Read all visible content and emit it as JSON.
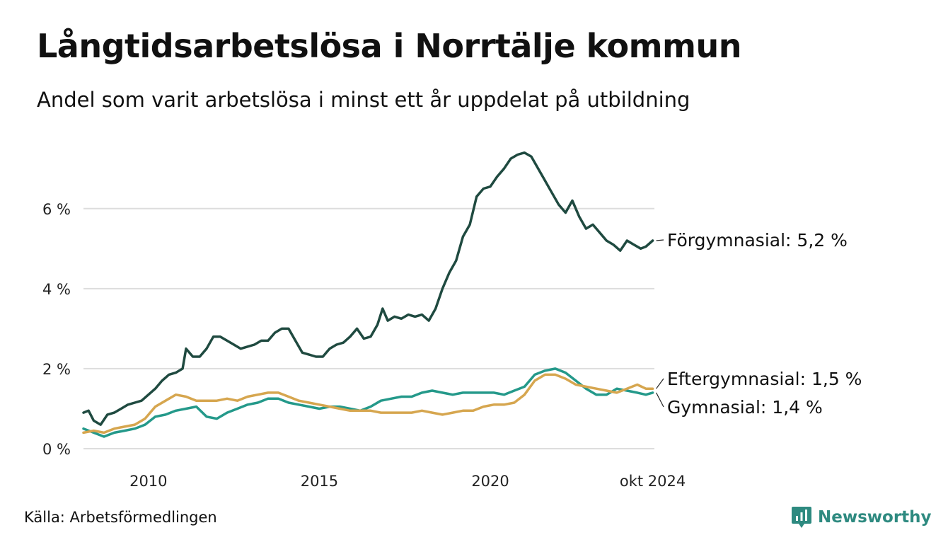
{
  "title": "Långtidsarbetslösa i Norrtälje kommun",
  "subtitle": "Andel som varit arbetslösa i minst ett år uppdelat på utbildning",
  "source": "Källa: Arbetsförmedlingen",
  "brand": "Newsworthy",
  "colors": {
    "forgymnasial": "#1f4a40",
    "gymnasial": "#24998a",
    "eftergymnasial": "#d6a64f",
    "grid": "#dddddd",
    "brand": "#2e8a80"
  },
  "chart_data": {
    "type": "line",
    "xlim": [
      2008.1,
      2024.8
    ],
    "ylim": [
      0,
      7.5
    ],
    "y_ticks": [
      {
        "value": 0,
        "label": "0 %"
      },
      {
        "value": 2,
        "label": "2 %"
      },
      {
        "value": 4,
        "label": "4 %"
      },
      {
        "value": 6,
        "label": "6 %"
      }
    ],
    "x_ticks": [
      {
        "value": 2010,
        "label": "2010"
      },
      {
        "value": 2015,
        "label": "2015"
      },
      {
        "value": 2020,
        "label": "2020"
      },
      {
        "value": 2024.75,
        "label": "okt 2024"
      }
    ],
    "grid": true,
    "series": [
      {
        "key": "forgymnasial",
        "name": "Förgymnasial",
        "end_label": "Förgymnasial: 5,2 %",
        "x": [
          2008.1,
          2008.25,
          2008.4,
          2008.6,
          2008.8,
          2009.0,
          2009.2,
          2009.4,
          2009.6,
          2009.8,
          2010.0,
          2010.2,
          2010.4,
          2010.6,
          2010.8,
          2011.0,
          2011.1,
          2011.3,
          2011.5,
          2011.7,
          2011.9,
          2012.1,
          2012.3,
          2012.5,
          2012.7,
          2012.9,
          2013.1,
          2013.3,
          2013.5,
          2013.7,
          2013.9,
          2014.1,
          2014.3,
          2014.5,
          2014.7,
          2014.9,
          2015.1,
          2015.3,
          2015.5,
          2015.7,
          2015.9,
          2016.1,
          2016.3,
          2016.5,
          2016.7,
          2016.85,
          2017.0,
          2017.2,
          2017.4,
          2017.6,
          2017.8,
          2018.0,
          2018.2,
          2018.4,
          2018.6,
          2018.8,
          2019.0,
          2019.2,
          2019.4,
          2019.6,
          2019.8,
          2020.0,
          2020.2,
          2020.4,
          2020.6,
          2020.8,
          2021.0,
          2021.2,
          2021.4,
          2021.6,
          2021.8,
          2022.0,
          2022.2,
          2022.4,
          2022.6,
          2022.8,
          2023.0,
          2023.2,
          2023.4,
          2023.6,
          2023.8,
          2024.0,
          2024.2,
          2024.4,
          2024.55,
          2024.75
        ],
        "y": [
          0.9,
          0.95,
          0.7,
          0.6,
          0.85,
          0.9,
          1.0,
          1.1,
          1.15,
          1.2,
          1.35,
          1.5,
          1.7,
          1.85,
          1.9,
          2.0,
          2.5,
          2.3,
          2.3,
          2.5,
          2.8,
          2.8,
          2.7,
          2.6,
          2.5,
          2.55,
          2.6,
          2.7,
          2.7,
          2.9,
          3.0,
          3.0,
          2.7,
          2.4,
          2.35,
          2.3,
          2.3,
          2.5,
          2.6,
          2.65,
          2.8,
          3.0,
          2.75,
          2.8,
          3.1,
          3.5,
          3.2,
          3.3,
          3.25,
          3.35,
          3.3,
          3.35,
          3.2,
          3.5,
          4.0,
          4.4,
          4.7,
          5.3,
          5.6,
          6.3,
          6.5,
          6.55,
          6.8,
          7.0,
          7.25,
          7.35,
          7.4,
          7.3,
          7.0,
          6.7,
          6.4,
          6.1,
          5.9,
          6.2,
          5.8,
          5.5,
          5.6,
          5.4,
          5.2,
          5.1,
          4.95,
          5.2,
          5.1,
          5.0,
          5.05,
          5.2
        ]
      },
      {
        "key": "gymnasial",
        "name": "Gymnasial",
        "end_label": "Gymnasial: 1,4 %",
        "x": [
          2008.1,
          2008.4,
          2008.7,
          2009.0,
          2009.3,
          2009.6,
          2009.9,
          2010.2,
          2010.5,
          2010.8,
          2011.1,
          2011.4,
          2011.7,
          2012.0,
          2012.3,
          2012.6,
          2012.9,
          2013.2,
          2013.5,
          2013.8,
          2014.1,
          2014.4,
          2014.7,
          2015.0,
          2015.3,
          2015.6,
          2015.9,
          2016.2,
          2016.5,
          2016.8,
          2017.1,
          2017.4,
          2017.7,
          2018.0,
          2018.3,
          2018.6,
          2018.9,
          2019.2,
          2019.5,
          2019.8,
          2020.1,
          2020.4,
          2020.7,
          2021.0,
          2021.3,
          2021.6,
          2021.9,
          2022.2,
          2022.5,
          2022.8,
          2023.1,
          2023.4,
          2023.7,
          2024.0,
          2024.3,
          2024.55,
          2024.75
        ],
        "y": [
          0.5,
          0.4,
          0.3,
          0.4,
          0.45,
          0.5,
          0.6,
          0.8,
          0.85,
          0.95,
          1.0,
          1.05,
          0.8,
          0.75,
          0.9,
          1.0,
          1.1,
          1.15,
          1.25,
          1.25,
          1.15,
          1.1,
          1.05,
          1.0,
          1.05,
          1.05,
          1.0,
          0.95,
          1.05,
          1.2,
          1.25,
          1.3,
          1.3,
          1.4,
          1.45,
          1.4,
          1.35,
          1.4,
          1.4,
          1.4,
          1.4,
          1.35,
          1.45,
          1.55,
          1.85,
          1.95,
          2.0,
          1.9,
          1.7,
          1.5,
          1.35,
          1.35,
          1.5,
          1.45,
          1.4,
          1.35,
          1.4
        ]
      },
      {
        "key": "eftergymnasial",
        "name": "Eftergymnasial",
        "end_label": "Eftergymnasial: 1,5 %",
        "x": [
          2008.1,
          2008.4,
          2008.7,
          2009.0,
          2009.3,
          2009.6,
          2009.9,
          2010.2,
          2010.5,
          2010.8,
          2011.1,
          2011.4,
          2011.7,
          2012.0,
          2012.3,
          2012.6,
          2012.9,
          2013.2,
          2013.5,
          2013.8,
          2014.1,
          2014.4,
          2014.7,
          2015.0,
          2015.3,
          2015.6,
          2015.9,
          2016.2,
          2016.5,
          2016.8,
          2017.1,
          2017.4,
          2017.7,
          2018.0,
          2018.3,
          2018.6,
          2018.9,
          2019.2,
          2019.5,
          2019.8,
          2020.1,
          2020.4,
          2020.7,
          2021.0,
          2021.3,
          2021.6,
          2021.9,
          2022.2,
          2022.5,
          2022.8,
          2023.1,
          2023.4,
          2023.7,
          2024.0,
          2024.3,
          2024.55,
          2024.75
        ],
        "y": [
          0.4,
          0.45,
          0.4,
          0.5,
          0.55,
          0.6,
          0.75,
          1.05,
          1.2,
          1.35,
          1.3,
          1.2,
          1.2,
          1.2,
          1.25,
          1.2,
          1.3,
          1.35,
          1.4,
          1.4,
          1.3,
          1.2,
          1.15,
          1.1,
          1.05,
          1.0,
          0.95,
          0.95,
          0.95,
          0.9,
          0.9,
          0.9,
          0.9,
          0.95,
          0.9,
          0.85,
          0.9,
          0.95,
          0.95,
          1.05,
          1.1,
          1.1,
          1.15,
          1.35,
          1.7,
          1.85,
          1.85,
          1.75,
          1.6,
          1.55,
          1.5,
          1.45,
          1.4,
          1.5,
          1.6,
          1.5,
          1.5
        ]
      }
    ]
  }
}
